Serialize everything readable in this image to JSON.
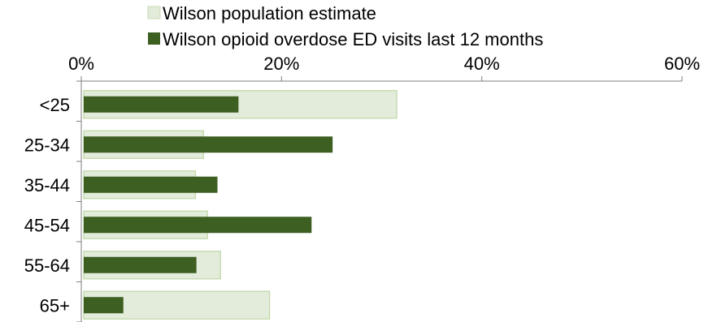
{
  "chart_data": {
    "type": "bar",
    "orientation": "horizontal",
    "categories": [
      "<25",
      "25-34",
      "35-44",
      "45-54",
      "55-64",
      "65+"
    ],
    "series": [
      {
        "name": "Wilson population estimate",
        "values": [
          31.5,
          12.2,
          11.4,
          12.6,
          13.9,
          18.8
        ],
        "color": "#e3ecda",
        "border": "#c7dbb2"
      },
      {
        "name": "Wilson opioid overdose ED visits last 12 months",
        "values": [
          15.7,
          25.1,
          13.6,
          23.0,
          11.5,
          4.2
        ],
        "color": "#3d5f22"
      }
    ],
    "xlim": [
      0,
      60
    ],
    "xticks": [
      "0%",
      "20%",
      "40%",
      "60%"
    ],
    "xtick_values": [
      0,
      20,
      40,
      60
    ],
    "grid": false,
    "legend_position": "top"
  }
}
